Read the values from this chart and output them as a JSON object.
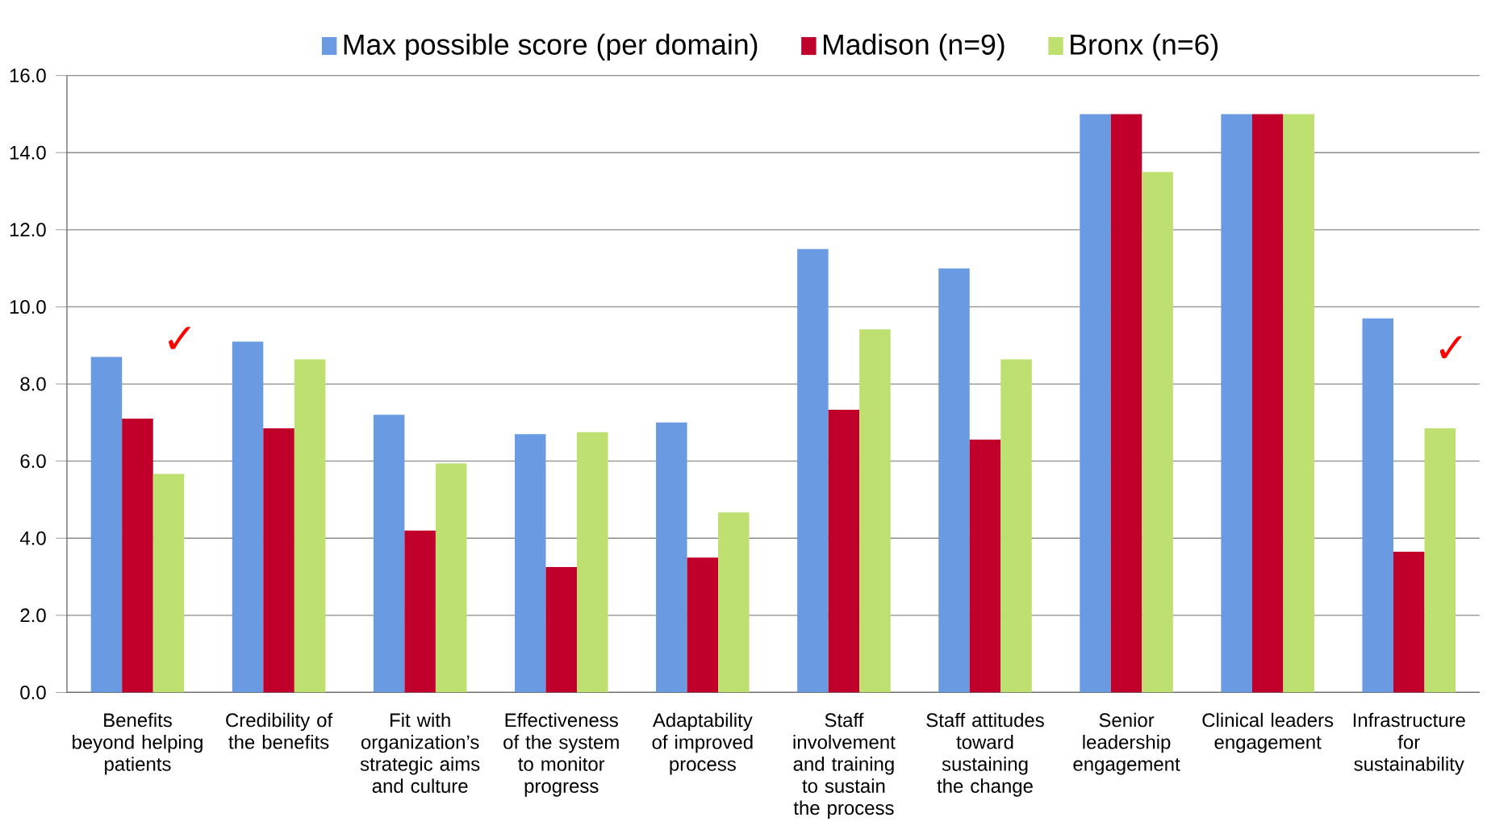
{
  "chart_data": {
    "type": "bar",
    "categories": [
      "Benefits beyond helping patients",
      "Credibility of the benefits",
      "Fit with organization’s strategic aims and culture",
      "Effectiveness of the system to monitor progress",
      "Adaptability of improved process",
      "Staff involvement and training to sustain the process",
      "Staff attitudes toward sustaining the change",
      "Senior leadership engagement",
      "Clinical leaders engagement",
      "Infrastructure for sustainability"
    ],
    "series": [
      {
        "name": "Max possible score (per domain)",
        "color": "#6a9ae2",
        "values": [
          8.7,
          9.1,
          7.2,
          6.7,
          7.0,
          11.5,
          11.0,
          15.0,
          15.0,
          9.7
        ]
      },
      {
        "name": "Madison (n=9)",
        "color": "#c0002a",
        "values": [
          7.1,
          6.85,
          4.2,
          3.25,
          3.5,
          7.33,
          6.56,
          15.0,
          15.0,
          3.65
        ]
      },
      {
        "name": "Bronx (n=6)",
        "color": "#bde070",
        "values": [
          5.67,
          8.64,
          5.94,
          6.75,
          4.67,
          9.42,
          8.64,
          13.5,
          15.0,
          6.85
        ]
      }
    ],
    "ylim": [
      0,
      16
    ],
    "yticks": [
      {
        "value": 0,
        "label": "0.0"
      },
      {
        "value": 2,
        "label": "2.0"
      },
      {
        "value": 4,
        "label": "4.0"
      },
      {
        "value": 6,
        "label": "6.0"
      },
      {
        "value": 8,
        "label": "8.0"
      },
      {
        "value": 10,
        "label": "10.0"
      },
      {
        "value": 12,
        "label": "12.0"
      },
      {
        "value": 14,
        "label": "14.0"
      },
      {
        "value": 16,
        "label": "16.0"
      }
    ],
    "grid": "y",
    "legend": "top",
    "annotations": [
      "✓",
      "✓"
    ]
  }
}
